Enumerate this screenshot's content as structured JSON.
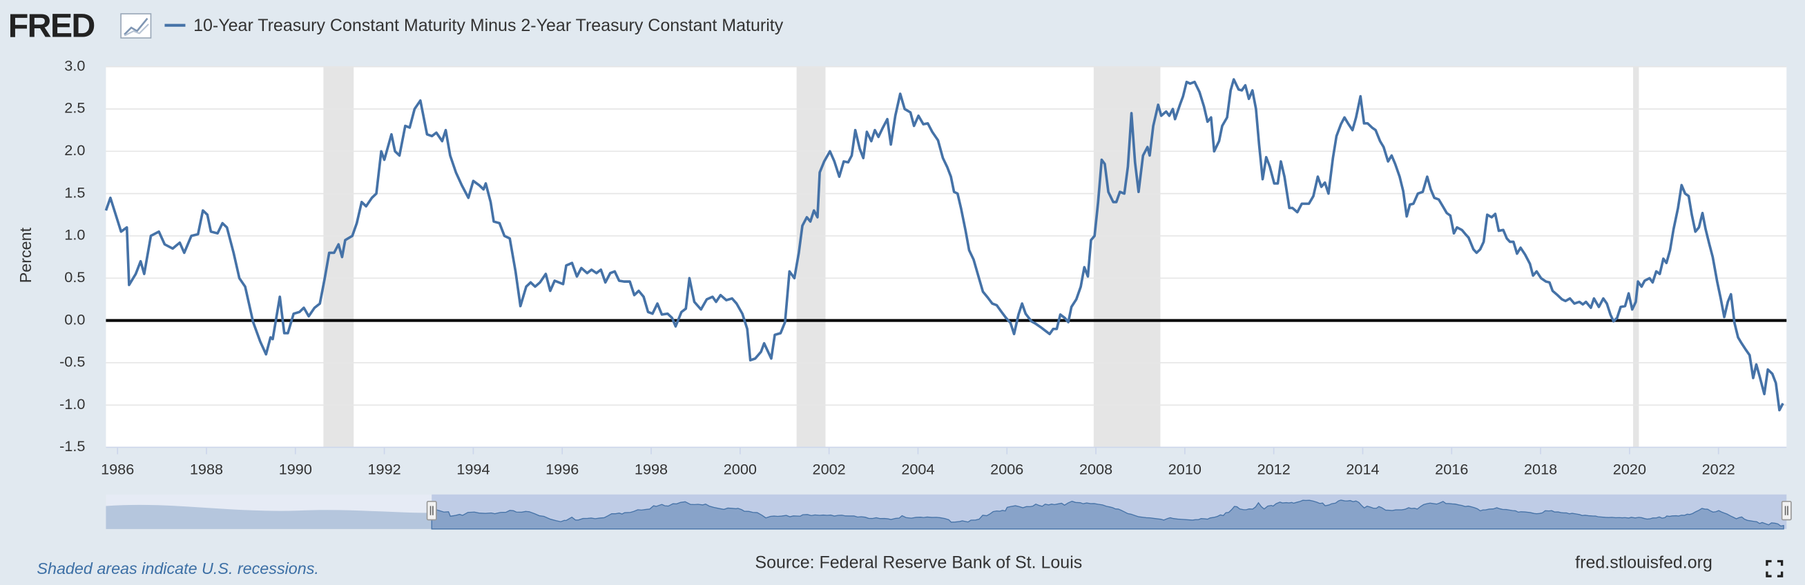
{
  "header": {
    "logo": "FRED"
  },
  "chart_data": {
    "type": "line",
    "y_label": "Percent",
    "xlim": [
      1985.74,
      2023.53
    ],
    "xticks": [
      1986,
      1988,
      1990,
      1992,
      1994,
      1996,
      1998,
      2000,
      2002,
      2004,
      2006,
      2008,
      2010,
      2012,
      2014,
      2016,
      2018,
      2020,
      2022
    ],
    "ylim": [
      -1.5,
      3.0
    ],
    "yticks": [
      {
        "value": -1.5,
        "label": "-1.5"
      },
      {
        "value": -1.0,
        "label": "-1.0"
      },
      -0.5,
      {
        "value": 0,
        "label": "0.0"
      },
      0.5,
      {
        "value": 1.0,
        "label": "1.0"
      },
      1.5,
      {
        "value": 2.0,
        "label": "2.0"
      },
      2.5,
      {
        "value": 3.0,
        "label": "3.0"
      }
    ],
    "grid": true,
    "recessions": [
      [
        1990.63,
        1991.31
      ],
      [
        2001.27,
        2001.92
      ],
      [
        2007.95,
        2009.45
      ],
      [
        2020.08,
        2020.21
      ]
    ],
    "x": [
      1985.74,
      1985.84,
      1986.08,
      1986.21,
      1986.26,
      1986.41,
      1986.52,
      1986.6,
      1986.75,
      1986.93,
      1987.06,
      1987.24,
      1987.4,
      1987.5,
      1987.66,
      1987.81,
      1987.92,
      1988.02,
      1988.1,
      1988.25,
      1988.36,
      1988.46,
      1988.61,
      1988.74,
      1988.87,
      1989.05,
      1989.21,
      1989.34,
      1989.44,
      1989.49,
      1989.65,
      1989.75,
      1989.83,
      1989.96,
      1990.09,
      1990.19,
      1990.3,
      1990.43,
      1990.55,
      1990.66,
      1990.76,
      1990.87,
      1990.97,
      1991.05,
      1991.12,
      1991.28,
      1991.38,
      1991.49,
      1991.59,
      1991.72,
      1991.82,
      1991.93,
      1992.0,
      1992.16,
      1992.24,
      1992.34,
      1992.47,
      1992.57,
      1992.68,
      1992.81,
      1992.96,
      1993.07,
      1993.17,
      1993.3,
      1993.38,
      1993.48,
      1993.61,
      1993.74,
      1993.89,
      1994.0,
      1994.13,
      1994.23,
      1994.28,
      1994.39,
      1994.46,
      1994.59,
      1994.7,
      1994.82,
      1994.95,
      1995.06,
      1995.19,
      1995.29,
      1995.39,
      1995.5,
      1995.63,
      1995.73,
      1995.83,
      1996.02,
      1996.09,
      1996.22,
      1996.33,
      1996.43,
      1996.56,
      1996.66,
      1996.77,
      1996.87,
      1996.97,
      1997.08,
      1997.18,
      1997.28,
      1997.39,
      1997.52,
      1997.62,
      1997.72,
      1997.83,
      1997.93,
      1998.03,
      1998.14,
      1998.24,
      1998.37,
      1998.47,
      1998.55,
      1998.68,
      1998.78,
      1998.86,
      1998.97,
      1999.12,
      1999.25,
      1999.38,
      1999.46,
      1999.56,
      1999.69,
      1999.82,
      1999.92,
      2000.05,
      2000.16,
      2000.23,
      2000.34,
      2000.47,
      2000.54,
      2000.7,
      2000.78,
      2000.91,
      2001.01,
      2001.11,
      2001.22,
      2001.32,
      2001.4,
      2001.5,
      2001.58,
      2001.66,
      2001.74,
      2001.79,
      2001.89,
      2002.02,
      2002.12,
      2002.23,
      2002.33,
      2002.43,
      2002.51,
      2002.59,
      2002.69,
      2002.77,
      2002.85,
      2002.95,
      2003.03,
      2003.11,
      2003.21,
      2003.31,
      2003.39,
      2003.49,
      2003.6,
      2003.7,
      2003.83,
      2003.91,
      2004.01,
      2004.12,
      2004.22,
      2004.32,
      2004.45,
      2004.56,
      2004.66,
      2004.74,
      2004.81,
      2004.89,
      2004.97,
      2005.07,
      2005.15,
      2005.25,
      2005.36,
      2005.46,
      2005.57,
      2005.67,
      2005.77,
      2005.88,
      2005.98,
      2006.08,
      2006.16,
      2006.26,
      2006.34,
      2006.42,
      2006.55,
      2006.65,
      2006.76,
      2006.86,
      2006.96,
      2007.04,
      2007.12,
      2007.2,
      2007.3,
      2007.38,
      2007.45,
      2007.56,
      2007.66,
      2007.74,
      2007.82,
      2007.89,
      2007.97,
      2008.05,
      2008.13,
      2008.2,
      2008.28,
      2008.39,
      2008.46,
      2008.54,
      2008.64,
      2008.72,
      2008.8,
      2008.88,
      2008.96,
      2009.06,
      2009.16,
      2009.21,
      2009.29,
      2009.4,
      2009.47,
      2009.58,
      2009.65,
      2009.73,
      2009.78,
      2009.89,
      2009.96,
      2010.04,
      2010.12,
      2010.22,
      2010.33,
      2010.43,
      2010.51,
      2010.59,
      2010.66,
      2010.77,
      2010.84,
      2010.95,
      2011.03,
      2011.1,
      2011.21,
      2011.28,
      2011.36,
      2011.44,
      2011.52,
      2011.6,
      2011.67,
      2011.75,
      2011.83,
      2011.91,
      2012.01,
      2012.09,
      2012.16,
      2012.24,
      2012.35,
      2012.42,
      2012.53,
      2012.63,
      2012.71,
      2012.79,
      2012.89,
      2012.99,
      2013.07,
      2013.15,
      2013.23,
      2013.33,
      2013.41,
      2013.51,
      2013.59,
      2013.67,
      2013.77,
      2013.85,
      2013.95,
      2014.03,
      2014.11,
      2014.21,
      2014.29,
      2014.39,
      2014.47,
      2014.57,
      2014.65,
      2014.73,
      2014.83,
      2014.91,
      2014.99,
      2015.06,
      2015.14,
      2015.24,
      2015.35,
      2015.45,
      2015.53,
      2015.61,
      2015.71,
      2015.79,
      2015.89,
      2015.97,
      2016.05,
      2016.12,
      2016.23,
      2016.31,
      2016.38,
      2016.49,
      2016.56,
      2016.64,
      2016.72,
      2016.8,
      2016.9,
      2016.98,
      2017.06,
      2017.16,
      2017.24,
      2017.31,
      2017.39,
      2017.47,
      2017.55,
      2017.65,
      2017.76,
      2017.83,
      2017.91,
      2018.01,
      2018.12,
      2018.2,
      2018.27,
      2018.38,
      2018.48,
      2018.56,
      2018.66,
      2018.76,
      2018.87,
      2018.95,
      2019.02,
      2019.13,
      2019.2,
      2019.31,
      2019.41,
      2019.49,
      2019.57,
      2019.64,
      2019.72,
      2019.8,
      2019.9,
      2019.98,
      2020.06,
      2020.14,
      2020.19,
      2020.27,
      2020.34,
      2020.45,
      2020.52,
      2020.6,
      2020.68,
      2020.76,
      2020.83,
      2020.91,
      2020.99,
      2021.09,
      2021.17,
      2021.25,
      2021.33,
      2021.4,
      2021.48,
      2021.56,
      2021.64,
      2021.71,
      2021.79,
      2021.87,
      2021.97,
      2022.05,
      2022.13,
      2022.21,
      2022.28,
      2022.36,
      2022.44,
      2022.52,
      2022.62,
      2022.7,
      2022.78,
      2022.85,
      2022.93,
      2023.03,
      2023.11,
      2023.21,
      2023.29,
      2023.37,
      2023.45
    ],
    "series": [
      {
        "name": "10-Year Treasury Constant Maturity Minus 2-Year Treasury Constant Maturity",
        "color": "#4572a7",
        "values": [
          1.3,
          1.45,
          1.05,
          1.1,
          0.42,
          0.55,
          0.7,
          0.55,
          1.0,
          1.05,
          0.9,
          0.85,
          0.92,
          0.8,
          1.0,
          1.02,
          1.3,
          1.25,
          1.05,
          1.03,
          1.15,
          1.1,
          0.8,
          0.5,
          0.4,
          -0.02,
          -0.25,
          -0.4,
          -0.2,
          -0.22,
          0.28,
          -0.15,
          -0.15,
          0.08,
          0.1,
          0.15,
          0.05,
          0.15,
          0.2,
          0.5,
          0.8,
          0.8,
          0.9,
          0.75,
          0.95,
          1.0,
          1.15,
          1.4,
          1.35,
          1.45,
          1.5,
          2.0,
          1.9,
          2.2,
          2.0,
          1.95,
          2.3,
          2.28,
          2.5,
          2.6,
          2.2,
          2.18,
          2.22,
          2.12,
          2.25,
          1.95,
          1.75,
          1.6,
          1.45,
          1.65,
          1.6,
          1.55,
          1.62,
          1.4,
          1.17,
          1.15,
          1.0,
          0.97,
          0.58,
          0.17,
          0.4,
          0.45,
          0.4,
          0.45,
          0.55,
          0.35,
          0.47,
          0.43,
          0.65,
          0.68,
          0.52,
          0.62,
          0.56,
          0.6,
          0.56,
          0.6,
          0.45,
          0.56,
          0.58,
          0.47,
          0.46,
          0.46,
          0.3,
          0.35,
          0.28,
          0.1,
          0.08,
          0.2,
          0.07,
          0.08,
          0.03,
          -0.07,
          0.1,
          0.14,
          0.5,
          0.22,
          0.13,
          0.25,
          0.28,
          0.22,
          0.3,
          0.24,
          0.26,
          0.2,
          0.08,
          -0.1,
          -0.47,
          -0.45,
          -0.37,
          -0.27,
          -0.45,
          -0.17,
          -0.15,
          -0.02,
          0.58,
          0.5,
          0.8,
          1.12,
          1.22,
          1.17,
          1.3,
          1.22,
          1.75,
          1.88,
          2.0,
          1.88,
          1.7,
          1.88,
          1.87,
          1.95,
          2.25,
          2.03,
          1.92,
          2.23,
          2.12,
          2.25,
          2.17,
          2.28,
          2.38,
          2.08,
          2.42,
          2.68,
          2.5,
          2.46,
          2.3,
          2.42,
          2.32,
          2.33,
          2.23,
          2.13,
          1.92,
          1.81,
          1.7,
          1.52,
          1.5,
          1.32,
          1.06,
          0.83,
          0.72,
          0.52,
          0.34,
          0.27,
          0.2,
          0.18,
          0.1,
          0.03,
          -0.03,
          -0.16,
          0.07,
          0.2,
          0.08,
          -0.01,
          -0.04,
          -0.08,
          -0.12,
          -0.16,
          -0.1,
          -0.1,
          0.07,
          0.03,
          -0.02,
          0.16,
          0.25,
          0.4,
          0.63,
          0.52,
          0.95,
          1.0,
          1.4,
          1.9,
          1.85,
          1.52,
          1.4,
          1.4,
          1.52,
          1.5,
          1.82,
          2.45,
          1.87,
          1.52,
          1.95,
          2.05,
          1.95,
          2.3,
          2.55,
          2.42,
          2.47,
          2.42,
          2.5,
          2.38,
          2.55,
          2.65,
          2.82,
          2.8,
          2.82,
          2.7,
          2.53,
          2.35,
          2.4,
          2.0,
          2.12,
          2.3,
          2.4,
          2.72,
          2.85,
          2.73,
          2.72,
          2.78,
          2.62,
          2.72,
          2.5,
          2.08,
          1.67,
          1.93,
          1.82,
          1.62,
          1.62,
          1.88,
          1.7,
          1.33,
          1.33,
          1.28,
          1.38,
          1.38,
          1.38,
          1.47,
          1.7,
          1.58,
          1.63,
          1.5,
          1.92,
          2.18,
          2.32,
          2.4,
          2.33,
          2.25,
          2.4,
          2.65,
          2.33,
          2.33,
          2.28,
          2.25,
          2.12,
          2.05,
          1.88,
          1.95,
          1.85,
          1.7,
          1.53,
          1.23,
          1.37,
          1.38,
          1.5,
          1.52,
          1.7,
          1.55,
          1.45,
          1.43,
          1.36,
          1.27,
          1.24,
          1.03,
          1.1,
          1.07,
          1.02,
          0.98,
          0.84,
          0.8,
          0.84,
          0.93,
          1.25,
          1.22,
          1.26,
          1.06,
          1.07,
          0.97,
          0.93,
          0.93,
          0.79,
          0.86,
          0.78,
          0.67,
          0.53,
          0.58,
          0.5,
          0.46,
          0.45,
          0.35,
          0.3,
          0.25,
          0.23,
          0.26,
          0.2,
          0.22,
          0.19,
          0.22,
          0.15,
          0.26,
          0.16,
          0.26,
          0.2,
          0.07,
          -0.01,
          0.03,
          0.16,
          0.17,
          0.32,
          0.13,
          0.22,
          0.46,
          0.4,
          0.47,
          0.5,
          0.45,
          0.58,
          0.55,
          0.73,
          0.68,
          0.83,
          1.08,
          1.33,
          1.6,
          1.5,
          1.47,
          1.25,
          1.05,
          1.1,
          1.27,
          1.08,
          0.91,
          0.75,
          0.46,
          0.26,
          0.04,
          0.22,
          0.31,
          -0.03,
          -0.2,
          -0.27,
          -0.35,
          -0.41,
          -0.68,
          -0.52,
          -0.67,
          -0.87,
          -0.58,
          -0.63,
          -0.74,
          -1.06,
          -0.98
        ]
      }
    ]
  },
  "footer": {
    "recession_note": "Shaded areas indicate U.S. recessions.",
    "source": "Source: Federal Reserve Bank of St. Louis",
    "site": "fred.stlouisfed.org"
  }
}
